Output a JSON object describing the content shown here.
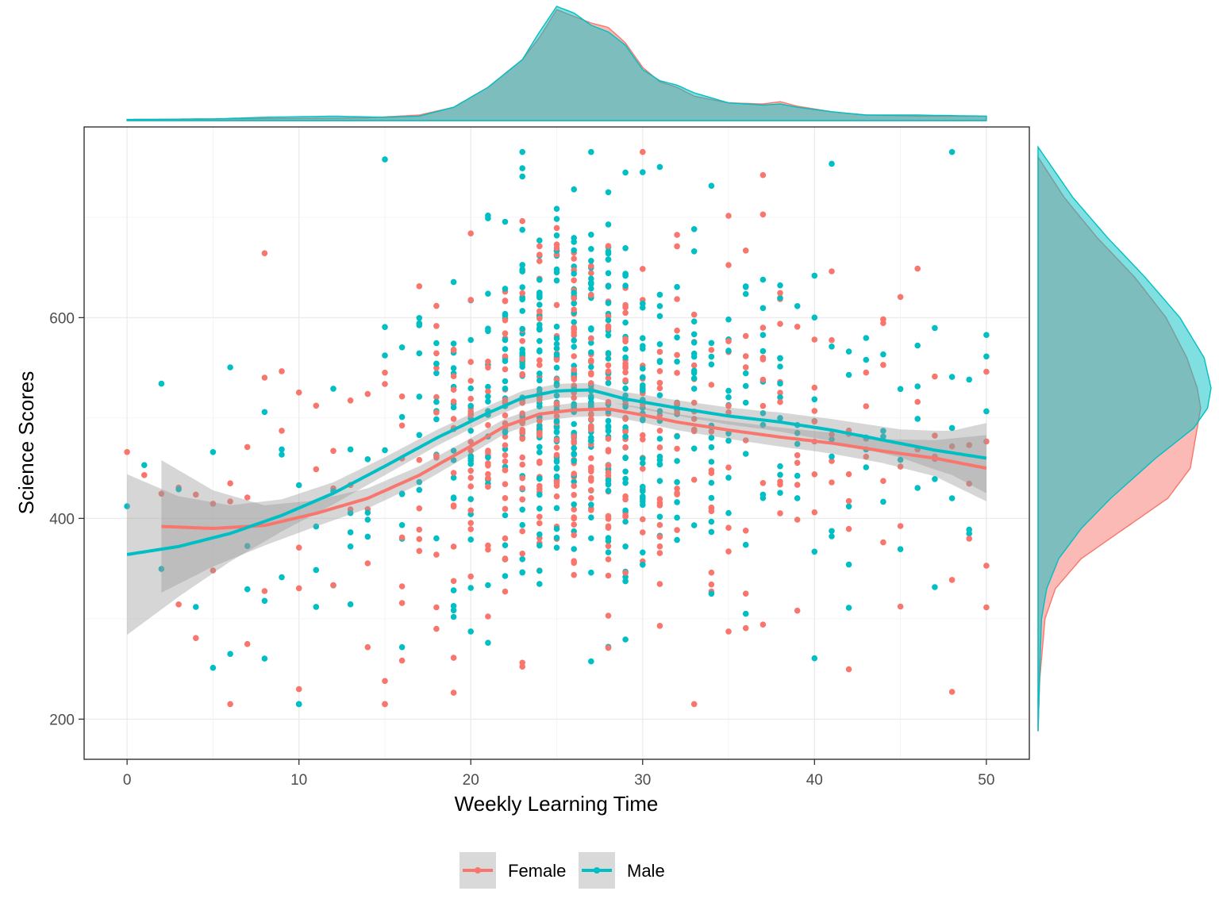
{
  "chart_data": {
    "type": "scatter",
    "title": "",
    "xlabel": "Weekly Learning Time",
    "ylabel": "Science Scores",
    "xlim": [
      -2.5,
      52.5
    ],
    "ylim": [
      160,
      790
    ],
    "x_ticks": [
      0,
      10,
      20,
      30,
      40,
      50
    ],
    "y_ticks": [
      200,
      400,
      600
    ],
    "grid": true,
    "legend_position": "bottom",
    "series": [
      {
        "name": "Female",
        "color": "#F8766D",
        "smooth": [
          [
            2,
            392
          ],
          [
            5,
            390
          ],
          [
            8,
            393
          ],
          [
            11,
            405
          ],
          [
            14,
            420
          ],
          [
            17,
            443
          ],
          [
            20,
            472
          ],
          [
            22,
            492
          ],
          [
            24,
            504
          ],
          [
            26,
            508
          ],
          [
            28,
            509
          ],
          [
            30,
            503
          ],
          [
            32,
            496
          ],
          [
            35,
            488
          ],
          [
            38,
            481
          ],
          [
            41,
            475
          ],
          [
            44,
            467
          ],
          [
            47,
            460
          ],
          [
            50,
            450
          ]
        ],
        "band_half_width": [
          [
            2,
            66
          ],
          [
            5,
            38
          ],
          [
            8,
            20
          ],
          [
            11,
            13
          ],
          [
            14,
            10
          ],
          [
            17,
            9
          ],
          [
            20,
            8
          ],
          [
            24,
            7
          ],
          [
            28,
            7
          ],
          [
            32,
            8
          ],
          [
            36,
            9
          ],
          [
            40,
            10
          ],
          [
            44,
            12
          ],
          [
            47,
            18
          ],
          [
            50,
            33
          ]
        ],
        "marginal_x": [
          [
            0,
            1
          ],
          [
            5,
            1.5
          ],
          [
            10,
            2
          ],
          [
            14,
            2.5
          ],
          [
            17,
            5
          ],
          [
            19,
            12
          ],
          [
            21,
            30
          ],
          [
            23,
            55
          ],
          [
            24,
            75
          ],
          [
            25,
            100
          ],
          [
            26,
            94
          ],
          [
            27,
            88
          ],
          [
            28,
            84
          ],
          [
            29,
            70
          ],
          [
            30,
            48
          ],
          [
            31,
            35
          ],
          [
            32,
            30
          ],
          [
            33,
            22
          ],
          [
            35,
            16
          ],
          [
            37,
            15
          ],
          [
            38,
            17
          ],
          [
            39,
            13
          ],
          [
            41,
            8
          ],
          [
            43,
            5
          ],
          [
            46,
            4
          ],
          [
            50,
            4
          ]
        ],
        "marginal_y": [
          [
            188,
            0
          ],
          [
            240,
            1
          ],
          [
            300,
            4
          ],
          [
            330,
            10
          ],
          [
            360,
            25
          ],
          [
            390,
            50
          ],
          [
            420,
            75
          ],
          [
            450,
            88
          ],
          [
            470,
            90
          ],
          [
            490,
            92
          ],
          [
            510,
            94
          ],
          [
            530,
            92
          ],
          [
            560,
            86
          ],
          [
            600,
            74
          ],
          [
            640,
            56
          ],
          [
            680,
            34
          ],
          [
            720,
            15
          ],
          [
            760,
            0
          ]
        ]
      },
      {
        "name": "Male",
        "color": "#00BFC4",
        "smooth": [
          [
            0,
            364
          ],
          [
            3,
            372
          ],
          [
            6,
            385
          ],
          [
            9,
            403
          ],
          [
            12,
            425
          ],
          [
            15,
            452
          ],
          [
            18,
            480
          ],
          [
            21,
            505
          ],
          [
            23,
            520
          ],
          [
            25,
            527
          ],
          [
            27,
            528
          ],
          [
            29,
            519
          ],
          [
            32,
            510
          ],
          [
            35,
            502
          ],
          [
            38,
            496
          ],
          [
            41,
            488
          ],
          [
            44,
            478
          ],
          [
            47,
            468
          ],
          [
            50,
            460
          ]
        ],
        "band_half_width": [
          [
            0,
            80
          ],
          [
            3,
            50
          ],
          [
            6,
            28
          ],
          [
            9,
            16
          ],
          [
            12,
            11
          ],
          [
            15,
            9
          ],
          [
            18,
            8
          ],
          [
            21,
            7
          ],
          [
            25,
            7
          ],
          [
            29,
            7
          ],
          [
            33,
            8
          ],
          [
            37,
            9
          ],
          [
            41,
            11
          ],
          [
            45,
            14
          ],
          [
            48,
            22
          ],
          [
            50,
            35
          ]
        ],
        "marginal_x": [
          [
            0,
            1
          ],
          [
            5,
            1.5
          ],
          [
            8,
            3
          ],
          [
            12,
            4
          ],
          [
            15,
            3
          ],
          [
            17,
            4
          ],
          [
            19,
            12
          ],
          [
            21,
            30
          ],
          [
            23,
            55
          ],
          [
            24,
            80
          ],
          [
            25,
            103
          ],
          [
            26,
            97
          ],
          [
            27,
            86
          ],
          [
            28,
            80
          ],
          [
            29,
            68
          ],
          [
            30,
            46
          ],
          [
            31,
            36
          ],
          [
            32,
            32
          ],
          [
            33,
            25
          ],
          [
            35,
            16
          ],
          [
            37,
            14
          ],
          [
            38,
            15
          ],
          [
            39,
            12
          ],
          [
            41,
            8
          ],
          [
            43,
            5
          ],
          [
            46,
            5
          ],
          [
            50,
            4
          ]
        ],
        "marginal_y": [
          [
            188,
            0
          ],
          [
            250,
            1
          ],
          [
            300,
            2
          ],
          [
            330,
            5
          ],
          [
            360,
            12
          ],
          [
            390,
            25
          ],
          [
            420,
            42
          ],
          [
            460,
            68
          ],
          [
            490,
            90
          ],
          [
            510,
            98
          ],
          [
            530,
            100
          ],
          [
            560,
            96
          ],
          [
            600,
            82
          ],
          [
            640,
            62
          ],
          [
            680,
            40
          ],
          [
            720,
            20
          ],
          [
            770,
            0
          ]
        ]
      }
    ]
  }
}
